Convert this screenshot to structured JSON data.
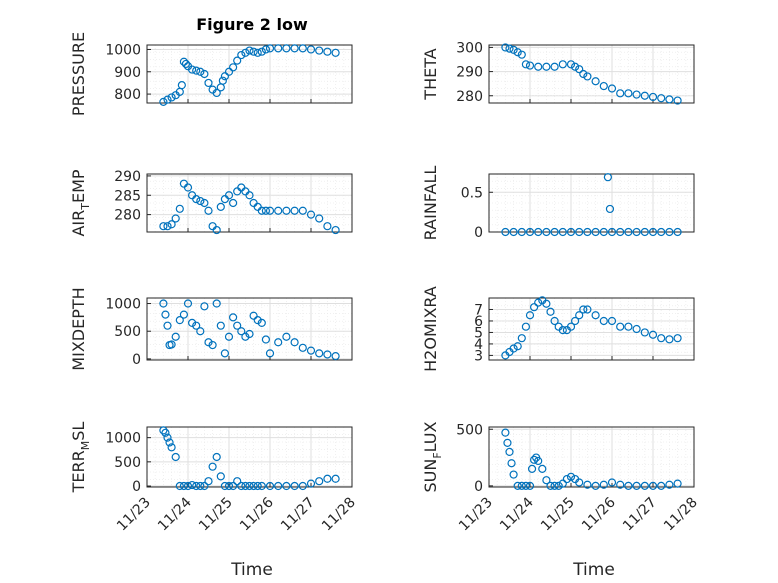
{
  "title": "Figure 2 low",
  "xlabel": "Time",
  "marker_color": "#0072bd",
  "chart_data": [
    {
      "type": "scatter",
      "ylabel": "PRESSURE",
      "yticks": [
        "1000",
        "900",
        "800"
      ],
      "ytick_values": [
        1000,
        900,
        800
      ],
      "ylim": [
        760,
        1020
      ],
      "xlim": [
        0,
        5
      ],
      "x": [
        0.4,
        0.5,
        0.6,
        0.7,
        0.8,
        0.85,
        0.9,
        0.95,
        1.0,
        1.1,
        1.2,
        1.3,
        1.4,
        1.5,
        1.6,
        1.7,
        1.8,
        1.85,
        1.9,
        2.0,
        2.1,
        2.2,
        2.3,
        2.4,
        2.5,
        2.6,
        2.7,
        2.8,
        2.9,
        3.0,
        3.2,
        3.4,
        3.6,
        3.8,
        4.0,
        4.2,
        4.4,
        4.6
      ],
      "y": [
        765,
        775,
        785,
        795,
        810,
        840,
        945,
        935,
        925,
        910,
        905,
        900,
        890,
        850,
        820,
        805,
        830,
        860,
        880,
        900,
        920,
        950,
        975,
        985,
        995,
        990,
        985,
        990,
        1000,
        1005,
        1005,
        1005,
        1005,
        1005,
        1000,
        995,
        990,
        985
      ]
    },
    {
      "type": "scatter",
      "ylabel": "THETA",
      "yticks": [
        "300",
        "290",
        "280"
      ],
      "ytick_values": [
        300,
        290,
        280
      ],
      "ylim": [
        277,
        301
      ],
      "xlim": [
        0,
        5
      ],
      "x": [
        0.4,
        0.5,
        0.6,
        0.7,
        0.8,
        0.9,
        1.0,
        1.2,
        1.4,
        1.6,
        1.8,
        2.0,
        2.1,
        2.2,
        2.3,
        2.4,
        2.6,
        2.8,
        3.0,
        3.2,
        3.4,
        3.6,
        3.8,
        4.0,
        4.2,
        4.4,
        4.6
      ],
      "y": [
        300,
        299.5,
        299,
        298,
        297,
        293,
        292.5,
        292,
        292,
        292,
        293,
        293,
        292,
        291,
        289,
        288,
        286,
        284,
        283,
        281,
        281,
        280.5,
        280,
        279.5,
        279,
        278.5,
        278
      ]
    },
    {
      "type": "scatter",
      "ylabel": "AIRTEMP",
      "ylabel_main": "AIR",
      "ylabel_sub": "T",
      "ylabel_rest": "EMP",
      "yticks": [
        "290",
        "285",
        "280"
      ],
      "ytick_values": [
        290,
        285,
        280
      ],
      "ylim": [
        275.5,
        290.5
      ],
      "xlim": [
        0,
        5
      ],
      "x": [
        0.4,
        0.5,
        0.6,
        0.7,
        0.8,
        0.9,
        1.0,
        1.1,
        1.2,
        1.3,
        1.4,
        1.5,
        1.6,
        1.7,
        1.8,
        1.9,
        2.0,
        2.1,
        2.2,
        2.3,
        2.4,
        2.5,
        2.6,
        2.7,
        2.8,
        2.9,
        3.0,
        3.2,
        3.4,
        3.6,
        3.8,
        4.0,
        4.2,
        4.4,
        4.6
      ],
      "y": [
        277,
        277,
        277.5,
        279,
        281.5,
        288,
        287,
        285,
        284,
        283.5,
        283,
        281,
        277,
        276,
        282,
        284,
        285,
        283,
        286,
        287,
        286,
        285,
        283,
        282,
        281,
        281,
        281,
        281,
        281,
        281,
        281,
        280,
        279,
        277,
        276
      ]
    },
    {
      "type": "scatter",
      "ylabel": "RAINFALL",
      "yticks": [
        "0.5",
        "0"
      ],
      "ytick_values": [
        0.5,
        0
      ],
      "ylim": [
        0,
        0.73
      ],
      "xlim": [
        0,
        5
      ],
      "x": [
        0.4,
        0.6,
        0.8,
        1.0,
        1.2,
        1.4,
        1.6,
        1.8,
        2.0,
        2.2,
        2.4,
        2.6,
        2.8,
        2.9,
        2.95,
        3.0,
        3.2,
        3.4,
        3.6,
        3.8,
        4.0,
        4.2,
        4.4,
        4.6
      ],
      "y": [
        0,
        0,
        0,
        0,
        0,
        0,
        0,
        0,
        0,
        0,
        0,
        0,
        0,
        0.69,
        0.29,
        0,
        0,
        0,
        0,
        0,
        0,
        0,
        0,
        0
      ]
    },
    {
      "type": "scatter",
      "ylabel": "MIXDEPTH",
      "yticks": [
        "1000",
        "500",
        "0"
      ],
      "ytick_values": [
        1000,
        500,
        0
      ],
      "ylim": [
        -20,
        1100
      ],
      "xlim": [
        0,
        5
      ],
      "x": [
        0.4,
        0.45,
        0.5,
        0.55,
        0.6,
        0.7,
        0.8,
        0.9,
        1.0,
        1.1,
        1.2,
        1.3,
        1.4,
        1.5,
        1.6,
        1.7,
        1.8,
        1.9,
        2.0,
        2.1,
        2.2,
        2.3,
        2.4,
        2.5,
        2.6,
        2.7,
        2.8,
        2.9,
        3.0,
        3.2,
        3.4,
        3.6,
        3.8,
        4.0,
        4.2,
        4.4,
        4.6
      ],
      "y": [
        1000,
        800,
        600,
        250,
        260,
        400,
        700,
        800,
        1000,
        650,
        600,
        500,
        950,
        300,
        250,
        1000,
        600,
        100,
        400,
        750,
        600,
        500,
        400,
        450,
        780,
        700,
        650,
        350,
        100,
        300,
        400,
        300,
        200,
        150,
        100,
        80,
        50
      ]
    },
    {
      "type": "scatter",
      "ylabel": "H2OMIXRA",
      "yticks": [
        "7",
        "6",
        "5",
        "4",
        "3"
      ],
      "ytick_values": [
        7,
        6,
        5,
        4,
        3
      ],
      "ylim": [
        2.6,
        8
      ],
      "xlim": [
        0,
        5
      ],
      "x": [
        0.4,
        0.5,
        0.6,
        0.7,
        0.8,
        0.9,
        1.0,
        1.1,
        1.2,
        1.3,
        1.4,
        1.5,
        1.6,
        1.7,
        1.8,
        1.9,
        2.0,
        2.1,
        2.2,
        2.3,
        2.4,
        2.6,
        2.8,
        3.0,
        3.2,
        3.4,
        3.6,
        3.8,
        4.0,
        4.2,
        4.4,
        4.6
      ],
      "y": [
        3,
        3.3,
        3.6,
        3.8,
        4.5,
        5.5,
        6.5,
        7.2,
        7.6,
        7.8,
        7.5,
        6.8,
        6,
        5.5,
        5.2,
        5.2,
        5.5,
        6,
        6.5,
        7,
        7,
        6.5,
        6,
        6,
        5.5,
        5.5,
        5.3,
        5,
        4.8,
        4.5,
        4.4,
        4.5
      ]
    },
    {
      "type": "scatter",
      "ylabel": "TERRMSL",
      "ylabel_main": "TERR",
      "ylabel_sub": "M",
      "ylabel_rest": "SL",
      "yticks": [
        "1000",
        "500",
        "0"
      ],
      "ytick_values": [
        1000,
        500,
        0
      ],
      "ylim": [
        -20,
        1220
      ],
      "xlim": [
        0,
        5
      ],
      "x": [
        0.4,
        0.45,
        0.5,
        0.55,
        0.6,
        0.7,
        0.8,
        0.9,
        1.0,
        1.1,
        1.2,
        1.3,
        1.4,
        1.5,
        1.6,
        1.7,
        1.8,
        1.9,
        2.0,
        2.1,
        2.2,
        2.3,
        2.4,
        2.5,
        2.6,
        2.7,
        2.8,
        3.0,
        3.2,
        3.4,
        3.6,
        3.8,
        4.0,
        4.2,
        4.4,
        4.6
      ],
      "y": [
        1150,
        1100,
        1000,
        900,
        800,
        600,
        0,
        0,
        0,
        20,
        0,
        0,
        0,
        100,
        400,
        600,
        200,
        0,
        0,
        0,
        100,
        0,
        0,
        0,
        0,
        0,
        0,
        0,
        0,
        0,
        0,
        0,
        50,
        100,
        150,
        150
      ]
    },
    {
      "type": "scatter",
      "ylabel": "SUNFLUX",
      "ylabel_main": "SUN",
      "ylabel_sub": "F",
      "ylabel_rest": "LUX",
      "yticks": [
        "500",
        "0"
      ],
      "ytick_values": [
        500,
        0
      ],
      "ylim": [
        -10,
        520
      ],
      "xlim": [
        0,
        5
      ],
      "x": [
        0.4,
        0.45,
        0.5,
        0.55,
        0.6,
        0.7,
        0.8,
        0.9,
        1.0,
        1.05,
        1.1,
        1.15,
        1.2,
        1.3,
        1.4,
        1.5,
        1.6,
        1.7,
        1.8,
        1.9,
        2.0,
        2.1,
        2.2,
        2.4,
        2.6,
        2.8,
        3.0,
        3.2,
        3.4,
        3.6,
        3.8,
        4.0,
        4.2,
        4.4,
        4.6
      ],
      "y": [
        470,
        380,
        300,
        200,
        100,
        0,
        0,
        0,
        0,
        150,
        230,
        250,
        220,
        150,
        50,
        0,
        0,
        0,
        20,
        60,
        80,
        60,
        30,
        10,
        0,
        10,
        30,
        10,
        0,
        0,
        0,
        0,
        0,
        10,
        20
      ]
    }
  ],
  "xticks": [
    "11/23",
    "11/24",
    "11/25",
    "11/26",
    "11/27",
    "11/28"
  ],
  "xtick_values": [
    0,
    1,
    2,
    3,
    4,
    5
  ]
}
